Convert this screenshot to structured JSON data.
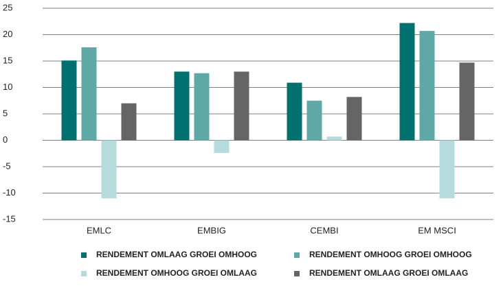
{
  "chart_data": {
    "type": "bar",
    "categories": [
      "EMLC",
      "EMBIG",
      "CEMBI",
      "EM MSCI"
    ],
    "series": [
      {
        "name": "RENDEMENT OMLAAG GROEI OMHOOG",
        "color": "#00716e",
        "values": [
          15.1,
          13,
          10.9,
          22.2
        ]
      },
      {
        "name": "RENDEMENT OMHOOG GROEI OMHOOG",
        "color": "#5ea9a5",
        "values": [
          17.6,
          12.7,
          7.5,
          20.7
        ]
      },
      {
        "name": "RENDEMENT OMHOOG GROEI OMLAAG",
        "color": "#b6dbdc",
        "values": [
          -11,
          -2.4,
          0.7,
          -11
        ]
      },
      {
        "name": "RENDEMENT OMLAAG GROEI OMLAAG",
        "color": "#656565",
        "values": [
          7,
          13,
          8.2,
          14.7
        ]
      }
    ],
    "ylim": [
      -15,
      25
    ],
    "yticks": [
      -15,
      -10,
      -5,
      0,
      5,
      10,
      15,
      20,
      25
    ],
    "grid": true,
    "legend": "bottom"
  }
}
